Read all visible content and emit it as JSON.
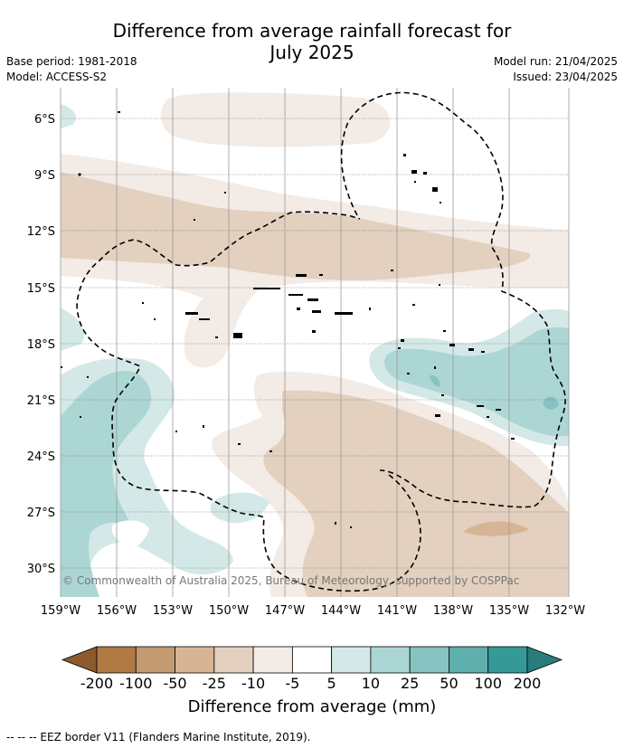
{
  "title": "Difference from average rainfall forecast for\nJuly 2025",
  "title_line1": "Difference from average rainfall forecast for",
  "title_line2": "July 2025",
  "base_period": "Base period: 1981-2018",
  "model": "Model: ACCESS-S2",
  "model_run": "Model run: 21/04/2025",
  "issued": "Issued: 23/04/2025",
  "copyright": "© Commonwealth of Australia 2025, Bureau of Meteorology, supported by COSPPac",
  "lat_labels": [
    "6°S",
    "9°S",
    "12°S",
    "15°S",
    "18°S",
    "21°S",
    "24°S",
    "27°S",
    "30°S"
  ],
  "lon_labels": [
    "159°W",
    "156°W",
    "153°W",
    "150°W",
    "147°W",
    "144°W",
    "141°W",
    "138°W",
    "135°W",
    "132°W"
  ],
  "colorbar": {
    "ticks": [
      "-200",
      "-100",
      "-50",
      "-25",
      "-10",
      "-5",
      "5",
      "10",
      "25",
      "50",
      "100",
      "200"
    ],
    "colors": [
      "#8c5a2e",
      "#b07a45",
      "#c49a70",
      "#d6b596",
      "#e3d0be",
      "#f3ebe5",
      "#ffffff",
      "#d4e9e7",
      "#acd6d4",
      "#86c3c1",
      "#5fafad",
      "#359a97",
      "#2a7c7a"
    ],
    "title": "Difference from average (mm)"
  },
  "footnote": "--  --  -- EEZ border V11 (Flanders Marine Institute, 2019)."
}
